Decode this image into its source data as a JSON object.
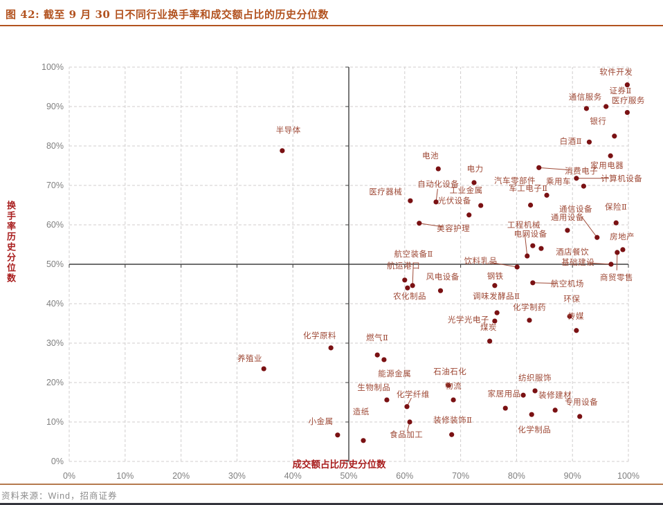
{
  "figure": {
    "title": "图 42:  截至 9 月 30 日不同行业换手率和成交额占比的历史分位数",
    "source": "资料来源：Wind，招商证券"
  },
  "chart_data": {
    "type": "scatter",
    "title": "截至9月30日不同行业换手率和成交额占比的历史分位数",
    "xlabel": "成交额占比历史分位数",
    "ylabel": "换手率历史分位数",
    "xlim": [
      0,
      100
    ],
    "ylim": [
      0,
      100
    ],
    "tick_step": 10,
    "x_ticks": [
      "0%",
      "10%",
      "20%",
      "30%",
      "40%",
      "50%",
      "60%",
      "70%",
      "80%",
      "90%",
      "100%"
    ],
    "y_ticks": [
      "0%",
      "10%",
      "20%",
      "30%",
      "40%",
      "50%",
      "60%",
      "70%",
      "80%",
      "90%",
      "100%"
    ],
    "grid": "dashed",
    "quadrant_cross": [
      50,
      50
    ],
    "point_color": "#7a1113",
    "label_color": "#9e4936",
    "points": [
      {
        "label": "软件开发",
        "x": 99.8,
        "y": 95.5,
        "lx": 97.8,
        "ly": 98.8
      },
      {
        "label": "证券Ⅱ",
        "x": 96.0,
        "y": 90.0,
        "lx": 98.6,
        "ly": 94.0
      },
      {
        "label": "医疗服务",
        "x": 99.8,
        "y": 88.5,
        "lx": 100.0,
        "ly": 91.6
      },
      {
        "label": "通信服务",
        "x": 92.5,
        "y": 89.5,
        "lx": 92.3,
        "ly": 92.5
      },
      {
        "label": "银行",
        "x": 97.5,
        "y": 82.5,
        "lx": 94.6,
        "ly": 86.3
      },
      {
        "label": "白酒Ⅱ",
        "x": 93.0,
        "y": 81.0,
        "lx": 89.7,
        "ly": 81.2
      },
      {
        "label": "家用电器",
        "x": 96.8,
        "y": 77.5,
        "lx": 96.2,
        "ly": 75.1
      },
      {
        "label": "消费电子",
        "x": 84.0,
        "y": 74.5,
        "lx": 91.6,
        "ly": 73.7,
        "leader": true
      },
      {
        "label": "计算机设备",
        "x": 90.7,
        "y": 71.8,
        "lx": 98.8,
        "ly": 71.8,
        "leader": true
      },
      {
        "label": "乘用车",
        "x": 92.0,
        "y": 69.8,
        "lx": 87.5,
        "ly": 71.1
      },
      {
        "label": "汽车零部件",
        "x": 85.4,
        "y": 67.5,
        "lx": 79.7,
        "ly": 71.2
      },
      {
        "label": "军工电子Ⅱ",
        "x": 82.5,
        "y": 65.0,
        "lx": 82.1,
        "ly": 69.3
      },
      {
        "label": "电池",
        "x": 66.0,
        "y": 74.2,
        "lx": 64.6,
        "ly": 77.5
      },
      {
        "label": "电力",
        "x": 72.4,
        "y": 70.7,
        "lx": 72.6,
        "ly": 74.2
      },
      {
        "label": "自动化设备",
        "x": 65.6,
        "y": 65.8,
        "lx": 66.0,
        "ly": 70.4,
        "leader": true
      },
      {
        "label": "医疗器械",
        "x": 61.0,
        "y": 66.1,
        "lx": 56.6,
        "ly": 68.4
      },
      {
        "label": "工业金属",
        "x": 73.6,
        "y": 64.9,
        "lx": 71.0,
        "ly": 68.8
      },
      {
        "label": "光伏设备",
        "x": 71.5,
        "y": 62.5,
        "lx": 68.9,
        "ly": 66.1
      },
      {
        "label": "美容护理",
        "x": 62.6,
        "y": 60.4,
        "lx": 68.7,
        "ly": 59.1,
        "leader": true
      },
      {
        "label": "半导体",
        "x": 38.1,
        "y": 78.8,
        "lx": 39.2,
        "ly": 84.0
      },
      {
        "label": "保险Ⅱ",
        "x": 97.8,
        "y": 60.5,
        "lx": 97.8,
        "ly": 64.6
      },
      {
        "label": "通用设备",
        "x": 89.1,
        "y": 58.6,
        "lx": 89.1,
        "ly": 61.9
      },
      {
        "label": "通信设备",
        "x": 94.4,
        "y": 56.8,
        "lx": 90.6,
        "ly": 64.0,
        "leader": true
      },
      {
        "label": "电网设备",
        "x": 82.9,
        "y": 54.7,
        "lx": 82.5,
        "ly": 57.7
      },
      {
        "label": "酒店餐饮",
        "x": 84.4,
        "y": 54.0,
        "lx": 90.0,
        "ly": 53.2
      },
      {
        "label": "工程机械",
        "x": 81.9,
        "y": 52.1,
        "lx": 81.3,
        "ly": 60.0,
        "leader": true
      },
      {
        "label": "房地产",
        "x": 99.0,
        "y": 53.7,
        "lx": 98.9,
        "ly": 57.0
      },
      {
        "label": "商贸零售",
        "x": 98.0,
        "y": 53.0,
        "lx": 97.9,
        "ly": 46.7,
        "leader": true
      },
      {
        "label": "基础建设",
        "x": 96.9,
        "y": 50.0,
        "lx": 91.0,
        "ly": 50.5,
        "leader": true
      },
      {
        "label": "饮料乳品",
        "x": 80.1,
        "y": 49.3,
        "lx": 73.6,
        "ly": 50.9,
        "leader": true
      },
      {
        "label": "航空机场",
        "x": 82.9,
        "y": 45.3,
        "lx": 89.1,
        "ly": 45.1,
        "leader": true
      },
      {
        "label": "航运港口",
        "x": 60.0,
        "y": 46.0,
        "lx": 59.8,
        "ly": 49.6
      },
      {
        "label": "航空装备Ⅱ",
        "x": 61.4,
        "y": 44.6,
        "lx": 61.6,
        "ly": 52.6,
        "leader": true
      },
      {
        "label": "农化制品",
        "x": 60.5,
        "y": 44.0,
        "lx": 60.9,
        "ly": 41.9
      },
      {
        "label": "风电设备",
        "x": 66.4,
        "y": 43.3,
        "lx": 66.8,
        "ly": 46.8
      },
      {
        "label": "钢铁",
        "x": 76.1,
        "y": 44.6,
        "lx": 76.2,
        "ly": 47.0
      },
      {
        "label": "调味发酵品Ⅱ",
        "x": 76.5,
        "y": 37.7,
        "lx": 76.4,
        "ly": 41.9
      },
      {
        "label": "化学制药",
        "x": 82.3,
        "y": 35.8,
        "lx": 82.3,
        "ly": 39.1
      },
      {
        "label": "光学光电子",
        "x": 76.1,
        "y": 35.6,
        "lx": 71.4,
        "ly": 36.0
      },
      {
        "label": "环保",
        "x": 89.5,
        "y": 36.8,
        "lx": 89.9,
        "ly": 41.2
      },
      {
        "label": "传媒",
        "x": 90.7,
        "y": 33.2,
        "lx": 90.6,
        "ly": 36.8
      },
      {
        "label": "煤炭",
        "x": 75.2,
        "y": 30.5,
        "lx": 75.0,
        "ly": 34.0
      },
      {
        "label": "化学原料",
        "x": 46.8,
        "y": 28.8,
        "lx": 44.8,
        "ly": 31.9
      },
      {
        "label": "燃气Ⅱ",
        "x": 55.1,
        "y": 27.0,
        "lx": 55.1,
        "ly": 31.4
      },
      {
        "label": "能源金属",
        "x": 56.3,
        "y": 25.8,
        "lx": 58.2,
        "ly": 22.3
      },
      {
        "label": "养殖业",
        "x": 34.8,
        "y": 23.5,
        "lx": 32.3,
        "ly": 26.1
      },
      {
        "label": "石油石化",
        "x": 67.8,
        "y": 19.3,
        "lx": 68.1,
        "ly": 22.8
      },
      {
        "label": "物流",
        "x": 68.7,
        "y": 15.6,
        "lx": 68.7,
        "ly": 19.1
      },
      {
        "label": "生物制品",
        "x": 56.8,
        "y": 15.6,
        "lx": 54.5,
        "ly": 18.8
      },
      {
        "label": "化学纤维",
        "x": 60.4,
        "y": 13.9,
        "lx": 61.5,
        "ly": 17.0,
        "leader": true
      },
      {
        "label": "纺织服饰",
        "x": 83.3,
        "y": 17.9,
        "lx": 83.3,
        "ly": 21.2
      },
      {
        "label": "家居用品",
        "x": 81.2,
        "y": 16.8,
        "lx": 77.8,
        "ly": 17.2
      },
      {
        "label": "",
        "x": 78.0,
        "y": 13.5,
        "lx": 78.0,
        "ly": 13.5
      },
      {
        "label": "装修建材",
        "x": 86.9,
        "y": 13.0,
        "lx": 86.9,
        "ly": 16.8
      },
      {
        "label": "专用设备",
        "x": 91.3,
        "y": 11.4,
        "lx": 91.6,
        "ly": 15.1
      },
      {
        "label": "化学制品",
        "x": 82.7,
        "y": 11.9,
        "lx": 83.2,
        "ly": 8.1
      },
      {
        "label": "食品加工",
        "x": 60.9,
        "y": 10.0,
        "lx": 60.3,
        "ly": 6.8,
        "leader": true
      },
      {
        "label": "装修装饰Ⅱ",
        "x": 68.4,
        "y": 6.8,
        "lx": 68.6,
        "ly": 10.5
      },
      {
        "label": "小金属",
        "x": 48.0,
        "y": 6.7,
        "lx": 45.0,
        "ly": 10.2
      },
      {
        "label": "造纸",
        "x": 52.6,
        "y": 5.3,
        "lx": 52.2,
        "ly": 12.6
      }
    ]
  }
}
